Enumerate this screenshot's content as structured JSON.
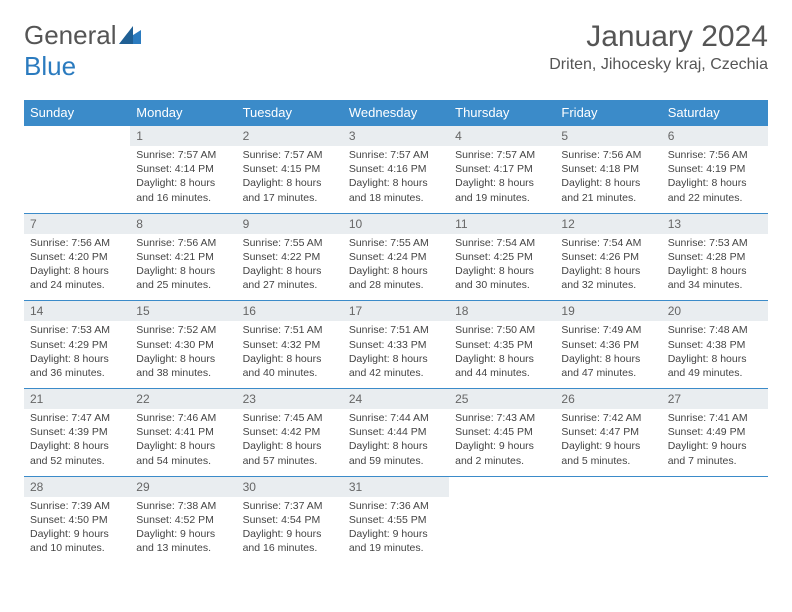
{
  "brand": {
    "part1": "General",
    "part2": "Blue"
  },
  "title": "January 2024",
  "location": "Driten, Jihocesky kraj, Czechia",
  "colors": {
    "header_bg": "#3b8bc9",
    "header_text": "#ffffff",
    "daynum_bg": "#e9edf0",
    "border": "#3b8bc9",
    "text": "#444444",
    "brand_gray": "#555555",
    "brand_blue": "#2b7bbf",
    "background": "#ffffff"
  },
  "typography": {
    "title_fontsize": 30,
    "location_fontsize": 16,
    "dow_fontsize": 13,
    "daynum_fontsize": 12,
    "body_fontsize": 10.5
  },
  "dow": [
    "Sunday",
    "Monday",
    "Tuesday",
    "Wednesday",
    "Thursday",
    "Friday",
    "Saturday"
  ],
  "weeks": [
    [
      {
        "num": "",
        "lines": []
      },
      {
        "num": "1",
        "lines": [
          "Sunrise: 7:57 AM",
          "Sunset: 4:14 PM",
          "Daylight: 8 hours",
          "and 16 minutes."
        ]
      },
      {
        "num": "2",
        "lines": [
          "Sunrise: 7:57 AM",
          "Sunset: 4:15 PM",
          "Daylight: 8 hours",
          "and 17 minutes."
        ]
      },
      {
        "num": "3",
        "lines": [
          "Sunrise: 7:57 AM",
          "Sunset: 4:16 PM",
          "Daylight: 8 hours",
          "and 18 minutes."
        ]
      },
      {
        "num": "4",
        "lines": [
          "Sunrise: 7:57 AM",
          "Sunset: 4:17 PM",
          "Daylight: 8 hours",
          "and 19 minutes."
        ]
      },
      {
        "num": "5",
        "lines": [
          "Sunrise: 7:56 AM",
          "Sunset: 4:18 PM",
          "Daylight: 8 hours",
          "and 21 minutes."
        ]
      },
      {
        "num": "6",
        "lines": [
          "Sunrise: 7:56 AM",
          "Sunset: 4:19 PM",
          "Daylight: 8 hours",
          "and 22 minutes."
        ]
      }
    ],
    [
      {
        "num": "7",
        "lines": [
          "Sunrise: 7:56 AM",
          "Sunset: 4:20 PM",
          "Daylight: 8 hours",
          "and 24 minutes."
        ]
      },
      {
        "num": "8",
        "lines": [
          "Sunrise: 7:56 AM",
          "Sunset: 4:21 PM",
          "Daylight: 8 hours",
          "and 25 minutes."
        ]
      },
      {
        "num": "9",
        "lines": [
          "Sunrise: 7:55 AM",
          "Sunset: 4:22 PM",
          "Daylight: 8 hours",
          "and 27 minutes."
        ]
      },
      {
        "num": "10",
        "lines": [
          "Sunrise: 7:55 AM",
          "Sunset: 4:24 PM",
          "Daylight: 8 hours",
          "and 28 minutes."
        ]
      },
      {
        "num": "11",
        "lines": [
          "Sunrise: 7:54 AM",
          "Sunset: 4:25 PM",
          "Daylight: 8 hours",
          "and 30 minutes."
        ]
      },
      {
        "num": "12",
        "lines": [
          "Sunrise: 7:54 AM",
          "Sunset: 4:26 PM",
          "Daylight: 8 hours",
          "and 32 minutes."
        ]
      },
      {
        "num": "13",
        "lines": [
          "Sunrise: 7:53 AM",
          "Sunset: 4:28 PM",
          "Daylight: 8 hours",
          "and 34 minutes."
        ]
      }
    ],
    [
      {
        "num": "14",
        "lines": [
          "Sunrise: 7:53 AM",
          "Sunset: 4:29 PM",
          "Daylight: 8 hours",
          "and 36 minutes."
        ]
      },
      {
        "num": "15",
        "lines": [
          "Sunrise: 7:52 AM",
          "Sunset: 4:30 PM",
          "Daylight: 8 hours",
          "and 38 minutes."
        ]
      },
      {
        "num": "16",
        "lines": [
          "Sunrise: 7:51 AM",
          "Sunset: 4:32 PM",
          "Daylight: 8 hours",
          "and 40 minutes."
        ]
      },
      {
        "num": "17",
        "lines": [
          "Sunrise: 7:51 AM",
          "Sunset: 4:33 PM",
          "Daylight: 8 hours",
          "and 42 minutes."
        ]
      },
      {
        "num": "18",
        "lines": [
          "Sunrise: 7:50 AM",
          "Sunset: 4:35 PM",
          "Daylight: 8 hours",
          "and 44 minutes."
        ]
      },
      {
        "num": "19",
        "lines": [
          "Sunrise: 7:49 AM",
          "Sunset: 4:36 PM",
          "Daylight: 8 hours",
          "and 47 minutes."
        ]
      },
      {
        "num": "20",
        "lines": [
          "Sunrise: 7:48 AM",
          "Sunset: 4:38 PM",
          "Daylight: 8 hours",
          "and 49 minutes."
        ]
      }
    ],
    [
      {
        "num": "21",
        "lines": [
          "Sunrise: 7:47 AM",
          "Sunset: 4:39 PM",
          "Daylight: 8 hours",
          "and 52 minutes."
        ]
      },
      {
        "num": "22",
        "lines": [
          "Sunrise: 7:46 AM",
          "Sunset: 4:41 PM",
          "Daylight: 8 hours",
          "and 54 minutes."
        ]
      },
      {
        "num": "23",
        "lines": [
          "Sunrise: 7:45 AM",
          "Sunset: 4:42 PM",
          "Daylight: 8 hours",
          "and 57 minutes."
        ]
      },
      {
        "num": "24",
        "lines": [
          "Sunrise: 7:44 AM",
          "Sunset: 4:44 PM",
          "Daylight: 8 hours",
          "and 59 minutes."
        ]
      },
      {
        "num": "25",
        "lines": [
          "Sunrise: 7:43 AM",
          "Sunset: 4:45 PM",
          "Daylight: 9 hours",
          "and 2 minutes."
        ]
      },
      {
        "num": "26",
        "lines": [
          "Sunrise: 7:42 AM",
          "Sunset: 4:47 PM",
          "Daylight: 9 hours",
          "and 5 minutes."
        ]
      },
      {
        "num": "27",
        "lines": [
          "Sunrise: 7:41 AM",
          "Sunset: 4:49 PM",
          "Daylight: 9 hours",
          "and 7 minutes."
        ]
      }
    ],
    [
      {
        "num": "28",
        "lines": [
          "Sunrise: 7:39 AM",
          "Sunset: 4:50 PM",
          "Daylight: 9 hours",
          "and 10 minutes."
        ]
      },
      {
        "num": "29",
        "lines": [
          "Sunrise: 7:38 AM",
          "Sunset: 4:52 PM",
          "Daylight: 9 hours",
          "and 13 minutes."
        ]
      },
      {
        "num": "30",
        "lines": [
          "Sunrise: 7:37 AM",
          "Sunset: 4:54 PM",
          "Daylight: 9 hours",
          "and 16 minutes."
        ]
      },
      {
        "num": "31",
        "lines": [
          "Sunrise: 7:36 AM",
          "Sunset: 4:55 PM",
          "Daylight: 9 hours",
          "and 19 minutes."
        ]
      },
      {
        "num": "",
        "lines": []
      },
      {
        "num": "",
        "lines": []
      },
      {
        "num": "",
        "lines": []
      }
    ]
  ]
}
